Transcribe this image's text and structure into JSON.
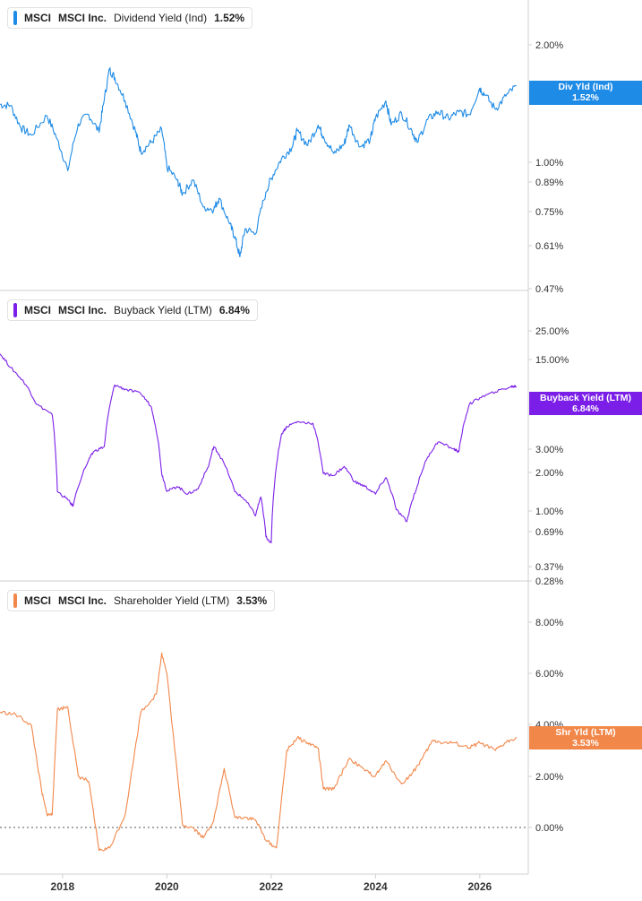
{
  "colors": {
    "dividend": "#1e8be6",
    "buyback": "#7b1fe8",
    "shareholder": "#f2874a",
    "axis": "#cfcfcf",
    "zero": "#555555"
  },
  "panels": [
    {
      "id": "dividend",
      "ticker": "MSCI",
      "company": "MSCI Inc.",
      "metric": "Dividend Yield (Ind)",
      "value": "1.52%",
      "tag_line1": "Div Yld (Ind)",
      "tag_line2": "1.52%",
      "y_ticks": [
        "2.00%",
        "1.00%",
        "0.89%",
        "0.75%",
        "0.61%",
        "0.47%"
      ]
    },
    {
      "id": "buyback",
      "ticker": "MSCI",
      "company": "MSCI Inc.",
      "metric": "Buyback Yield (LTM)",
      "value": "6.84%",
      "tag_line1": "Buyback Yield (LTM)",
      "tag_line2": "6.84%",
      "y_ticks": [
        "25.00%",
        "15.00%",
        "3.00%",
        "2.00%",
        "1.00%",
        "0.69%",
        "0.37%",
        "0.28%"
      ]
    },
    {
      "id": "shareholder",
      "ticker": "MSCI",
      "company": "MSCI Inc.",
      "metric": "Shareholder Yield (LTM)",
      "value": "3.53%",
      "tag_line1": "Shr Yld (LTM)",
      "tag_line2": "3.53%",
      "y_ticks": [
        "8.00%",
        "6.00%",
        "4.00%",
        "2.00%",
        "0.00%"
      ]
    }
  ],
  "x_ticks": [
    "2018",
    "2020",
    "2022",
    "2024",
    "2026"
  ],
  "chart_data": [
    {
      "type": "line",
      "name": "Dividend Yield (Ind)",
      "scale": "log",
      "ylim": [
        0.47,
        2.4
      ],
      "x": [
        2016.8,
        2017.0,
        2017.2,
        2017.4,
        2017.7,
        2017.9,
        2018.1,
        2018.3,
        2018.5,
        2018.7,
        2018.8,
        2018.9,
        2019.0,
        2019.2,
        2019.4,
        2019.5,
        2019.7,
        2019.9,
        2020.0,
        2020.2,
        2020.3,
        2020.5,
        2020.7,
        2020.9,
        2021.0,
        2021.2,
        2021.3,
        2021.4,
        2021.5,
        2021.7,
        2021.9,
        2022.0,
        2022.2,
        2022.4,
        2022.5,
        2022.7,
        2022.9,
        2023.0,
        2023.2,
        2023.4,
        2023.5,
        2023.7,
        2023.9,
        2024.0,
        2024.2,
        2024.3,
        2024.5,
        2024.7,
        2024.8,
        2025.0,
        2025.2,
        2025.4,
        2025.6,
        2025.8,
        2026.0,
        2026.1,
        2026.3,
        2026.5,
        2026.7
      ],
      "y": [
        1.36,
        1.35,
        1.18,
        1.13,
        1.27,
        1.1,
        0.91,
        1.21,
        1.28,
        1.15,
        1.4,
        1.68,
        1.6,
        1.39,
        1.15,
        1.02,
        1.08,
        1.17,
        0.93,
        0.86,
        0.79,
        0.86,
        0.73,
        0.72,
        0.77,
        0.66,
        0.61,
        0.54,
        0.64,
        0.62,
        0.8,
        0.87,
        0.98,
        1.05,
        1.16,
        1.06,
        1.2,
        1.12,
        1.01,
        1.07,
        1.2,
        1.05,
        1.1,
        1.25,
        1.39,
        1.2,
        1.29,
        1.16,
        1.08,
        1.24,
        1.3,
        1.25,
        1.3,
        1.28,
        1.5,
        1.44,
        1.32,
        1.43,
        1.52
      ]
    },
    {
      "type": "line",
      "name": "Buyback Yield (LTM)",
      "scale": "log",
      "ylim": [
        0.28,
        30
      ],
      "x": [
        2016.8,
        2017.0,
        2017.3,
        2017.5,
        2017.8,
        2017.9,
        2018.1,
        2018.2,
        2018.5,
        2018.6,
        2018.8,
        2019.0,
        2019.2,
        2019.5,
        2019.7,
        2019.9,
        2020.0,
        2020.2,
        2020.4,
        2020.6,
        2020.8,
        2020.9,
        2021.0,
        2021.3,
        2021.5,
        2021.7,
        2021.8,
        2021.9,
        2022.0,
        2022.2,
        2022.3,
        2022.5,
        2022.8,
        2023.0,
        2023.2,
        2023.4,
        2023.6,
        2023.8,
        2024.0,
        2024.2,
        2024.4,
        2024.6,
        2024.8,
        2025.0,
        2025.2,
        2025.5,
        2025.6,
        2025.8,
        2026.0,
        2026.3,
        2026.6,
        2026.7
      ],
      "y": [
        12.0,
        9.5,
        7.0,
        5.0,
        4.2,
        1.1,
        0.95,
        0.85,
        1.9,
        2.2,
        2.4,
        7.0,
        6.5,
        6.0,
        4.8,
        1.5,
        1.1,
        1.2,
        1.05,
        1.15,
        1.7,
        2.4,
        2.1,
        1.1,
        0.95,
        0.72,
        1.0,
        0.5,
        0.45,
        3.0,
        3.4,
        3.7,
        3.6,
        1.5,
        1.45,
        1.7,
        1.3,
        1.2,
        1.05,
        1.4,
        0.8,
        0.65,
        1.2,
        2.0,
        2.6,
        2.3,
        2.2,
        5.0,
        5.6,
        6.2,
        6.8,
        6.84
      ]
    },
    {
      "type": "line",
      "name": "Shareholder Yield (LTM)",
      "scale": "linear",
      "ylim": [
        -1.8,
        9.0
      ],
      "x": [
        2016.8,
        2017.1,
        2017.4,
        2017.6,
        2017.7,
        2017.8,
        2017.9,
        2018.1,
        2018.3,
        2018.5,
        2018.7,
        2018.9,
        2019.2,
        2019.5,
        2019.8,
        2019.9,
        2020.0,
        2020.3,
        2020.5,
        2020.7,
        2020.9,
        2021.1,
        2021.3,
        2021.5,
        2021.7,
        2021.9,
        2022.1,
        2022.3,
        2022.5,
        2022.7,
        2022.9,
        2023.0,
        2023.2,
        2023.5,
        2023.8,
        2024.0,
        2024.2,
        2024.5,
        2024.7,
        2024.9,
        2025.1,
        2025.3,
        2025.5,
        2025.8,
        2026.0,
        2026.3,
        2026.5,
        2026.7
      ],
      "y": [
        4.5,
        4.4,
        4.0,
        1.4,
        0.5,
        0.5,
        4.6,
        4.7,
        2.0,
        1.8,
        -0.9,
        -0.8,
        0.5,
        4.5,
        5.2,
        6.8,
        6.0,
        0.1,
        0.0,
        -0.4,
        0.3,
        2.3,
        0.4,
        0.4,
        0.3,
        -0.5,
        -0.8,
        3.0,
        3.5,
        3.3,
        3.1,
        1.5,
        1.5,
        2.7,
        2.2,
        2.0,
        2.6,
        1.7,
        2.1,
        2.7,
        3.4,
        3.3,
        3.3,
        3.1,
        3.3,
        3.0,
        3.3,
        3.53
      ]
    }
  ]
}
